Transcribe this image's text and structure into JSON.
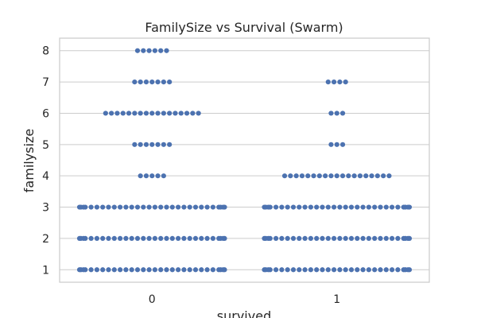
{
  "chart_data": {
    "type": "scatter",
    "subtype": "swarm",
    "title": "FamilySize vs Survival (Swarm)",
    "xlabel": "survived",
    "ylabel": "familysize",
    "categories": [
      "0",
      "1"
    ],
    "ylim": [
      0.6,
      8.4
    ],
    "yticks": [
      "1",
      "2",
      "3",
      "4",
      "5",
      "6",
      "7",
      "8"
    ],
    "grid": "horizontal",
    "dot_color": "#4c72b0",
    "groups": [
      {
        "category": "0",
        "points": [
          {
            "y": 1,
            "count": 26
          },
          {
            "y": 2,
            "count": 26
          },
          {
            "y": 3,
            "count": 26
          },
          {
            "y": 4,
            "count": 5
          },
          {
            "y": 5,
            "count": 7
          },
          {
            "y": 6,
            "count": 17
          },
          {
            "y": 7,
            "count": 7
          },
          {
            "y": 8,
            "count": 6
          }
        ]
      },
      {
        "category": "1",
        "points": [
          {
            "y": 1,
            "count": 26
          },
          {
            "y": 2,
            "count": 26
          },
          {
            "y": 3,
            "count": 26
          },
          {
            "y": 4,
            "count": 19
          },
          {
            "y": 5,
            "count": 3
          },
          {
            "y": 6,
            "count": 3
          },
          {
            "y": 7,
            "count": 4
          }
        ]
      }
    ]
  }
}
